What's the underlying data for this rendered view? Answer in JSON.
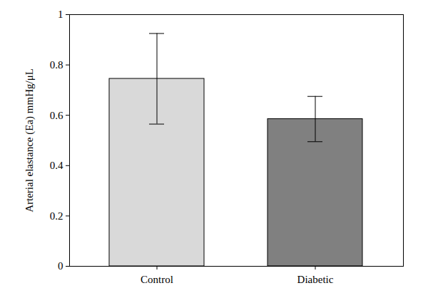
{
  "chart_data": {
    "type": "bar",
    "categories": [
      "Control",
      "Diabetic"
    ],
    "values": [
      0.745,
      0.585
    ],
    "errors": [
      0.18,
      0.09
    ],
    "colors": [
      "#d9d9d9",
      "#808080"
    ],
    "ylabel": "Arterial elastance (Ea) mmHg/μL",
    "ylim": [
      0,
      1
    ],
    "yticks": [
      0,
      0.2,
      0.4,
      0.6,
      0.8,
      1
    ]
  }
}
